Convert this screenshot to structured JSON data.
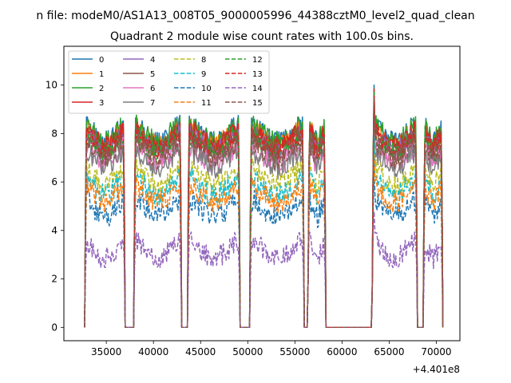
{
  "figure": {
    "suptitle": "n file: modeM0/AS1A13_008T05_9000005996_44388cztM0_level2_quad_clean",
    "title": "Quadrant 2 module wise count rates with 100.0s bins.",
    "offset_label": "+4.401e8"
  },
  "chart_data": {
    "type": "line",
    "title": "Quadrant 2 module wise count rates with 100.0s bins.",
    "xlabel": "",
    "ylabel": "",
    "xlim": [
      30500,
      72500
    ],
    "ylim": [
      -0.55,
      11.6
    ],
    "x_offset": 440100000,
    "xticks": [
      35000,
      40000,
      45000,
      50000,
      55000,
      60000,
      65000,
      70000
    ],
    "yticks": [
      0,
      2,
      4,
      6,
      8,
      10
    ],
    "grid": false,
    "legend_position": "upper-left",
    "legend_columns": 4,
    "segments": [
      [
        32700,
        37000
      ],
      [
        37900,
        43000
      ],
      [
        43600,
        49200
      ],
      [
        50200,
        56000
      ],
      [
        56400,
        58300
      ],
      [
        63200,
        68000
      ],
      [
        68600,
        70700
      ]
    ],
    "series": [
      {
        "name": "0",
        "color": "#1f77b4",
        "dash": "solid",
        "level": 8.0
      },
      {
        "name": "1",
        "color": "#ff7f0e",
        "dash": "solid",
        "level": 7.9
      },
      {
        "name": "2",
        "color": "#2ca02c",
        "dash": "solid",
        "level": 8.0
      },
      {
        "name": "3",
        "color": "#d62728",
        "dash": "solid",
        "level": 7.8
      },
      {
        "name": "4",
        "color": "#9467bd",
        "dash": "solid",
        "level": 7.6
      },
      {
        "name": "5",
        "color": "#8c564b",
        "dash": "solid",
        "level": 7.5
      },
      {
        "name": "6",
        "color": "#e377c2",
        "dash": "solid",
        "level": 7.1
      },
      {
        "name": "7",
        "color": "#7f7f7f",
        "dash": "solid",
        "level": 6.9
      },
      {
        "name": "8",
        "color": "#bcbd22",
        "dash": "dashed",
        "level": 6.2
      },
      {
        "name": "9",
        "color": "#17becf",
        "dash": "dashed",
        "level": 5.8
      },
      {
        "name": "10",
        "color": "#1f77b4",
        "dash": "dashed",
        "level": 4.9
      },
      {
        "name": "11",
        "color": "#ff7f0e",
        "dash": "dashed",
        "level": 5.5
      },
      {
        "name": "12",
        "color": "#2ca02c",
        "dash": "dashed",
        "level": 7.6
      },
      {
        "name": "13",
        "color": "#d62728",
        "dash": "dashed",
        "level": 7.7
      },
      {
        "name": "14",
        "color": "#9467bd",
        "dash": "dashed",
        "level": 3.2
      },
      {
        "name": "15",
        "color": "#8c564b",
        "dash": "dashed",
        "level": 7.3
      }
    ]
  }
}
